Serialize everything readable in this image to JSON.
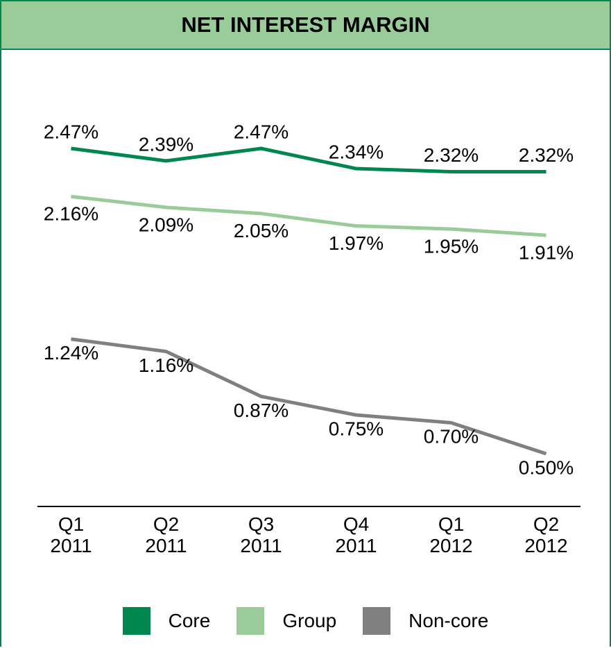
{
  "chart_data": {
    "type": "line",
    "title": "NET INTEREST MARGIN",
    "categories": [
      "Q1 2011",
      "Q2 2011",
      "Q3 2011",
      "Q4 2011",
      "Q1 2012",
      "Q2 2012"
    ],
    "series": [
      {
        "name": "Core",
        "color": "#00874f",
        "values": [
          2.47,
          2.39,
          2.47,
          2.34,
          2.32,
          2.32
        ],
        "value_labels": [
          "2.47%",
          "2.39%",
          "2.47%",
          "2.34%",
          "2.32%",
          "2.32%"
        ]
      },
      {
        "name": "Group",
        "color": "#99cc99",
        "values": [
          2.16,
          2.09,
          2.05,
          1.97,
          1.95,
          1.91
        ],
        "value_labels": [
          "2.16%",
          "2.09%",
          "2.05%",
          "1.97%",
          "1.95%",
          "1.91%"
        ]
      },
      {
        "name": "Non-core",
        "color": "#808080",
        "values": [
          1.24,
          1.16,
          0.87,
          0.75,
          0.7,
          0.5
        ],
        "value_labels": [
          "1.24%",
          "1.16%",
          "0.87%",
          "0.75%",
          "0.70%",
          "0.50%"
        ]
      }
    ],
    "legend": "bottom"
  }
}
